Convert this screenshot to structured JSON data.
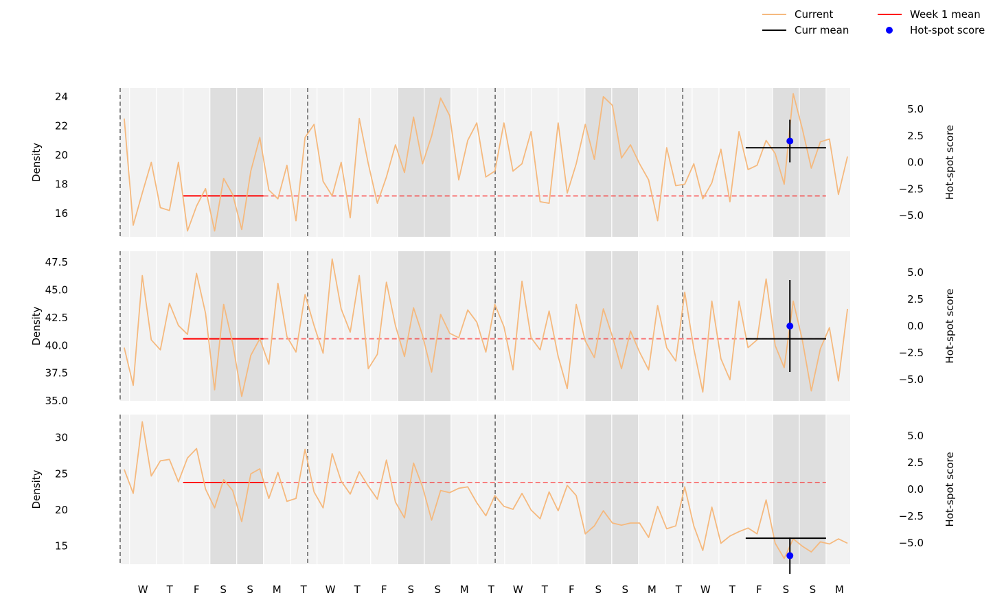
{
  "chart_data": {
    "type": "line",
    "legend": {
      "placement": "top-right",
      "entries": [
        {
          "name": "Current",
          "color": "#f5b97e",
          "marker": "line"
        },
        {
          "name": "Curr mean",
          "color": "#000000",
          "marker": "line"
        },
        {
          "name": "Week 1 mean",
          "color": "#ff0000",
          "marker": "line"
        },
        {
          "name": "Hot-spot score",
          "color": "#0000ff",
          "marker": "dot"
        }
      ]
    },
    "day_labels": [
      "W",
      "T",
      "F",
      "S",
      "S",
      "M",
      "T",
      "W",
      "T",
      "F",
      "S",
      "S",
      "M",
      "T",
      "W",
      "T",
      "F",
      "S",
      "S",
      "M",
      "T",
      "W",
      "T",
      "F",
      "S",
      "S",
      "M"
    ],
    "week_boundaries_day": [
      0,
      7,
      14,
      21
    ],
    "weekend_day_ranges": [
      [
        3,
        5
      ],
      [
        10,
        12
      ],
      [
        17,
        19
      ],
      [
        24,
        26
      ]
    ],
    "x_range_day": [
      -0.35,
      26.9
    ],
    "week1_mean_span_day": [
      2.0,
      5.0
    ],
    "week1_mean_dashed_span_day": [
      5.0,
      26.0
    ],
    "curr_mean_span_day": [
      23.0,
      26.0
    ],
    "hotspot_day": 24.65,
    "panels": [
      {
        "ylabel": "Density",
        "y2label": "Hot-spot score",
        "ylim": [
          14.4,
          24.6
        ],
        "yticks": [
          16,
          18,
          20,
          22,
          24
        ],
        "ytick_labels": [
          "16",
          "18",
          "20",
          "22",
          "24"
        ],
        "y2lim": [
          -7.0,
          7.0
        ],
        "y2ticks": [
          -5.0,
          -2.5,
          0.0,
          2.5,
          5.0
        ],
        "y2tick_labels": [
          "−5.0",
          "−2.5",
          "0.0",
          "2.5",
          "5.0"
        ],
        "week1_mean": 17.2,
        "curr_mean": 20.5,
        "hotspot_score": 2.0,
        "hotspot_error": 2.0,
        "current": [
          22.5,
          15.2,
          17.4,
          19.5,
          16.4,
          16.2,
          19.5,
          14.8,
          16.5,
          17.7,
          14.8,
          18.4,
          17.3,
          14.9,
          18.9,
          21.2,
          17.6,
          17.0,
          19.3,
          15.5,
          21.2,
          22.1,
          18.2,
          17.2,
          19.5,
          15.7,
          22.5,
          19.4,
          16.7,
          18.5,
          20.7,
          18.8,
          22.6,
          19.4,
          21.3,
          23.9,
          22.7,
          18.3,
          21.0,
          22.2,
          18.5,
          18.9,
          22.2,
          18.9,
          19.4,
          21.6,
          16.8,
          16.7,
          22.2,
          17.4,
          19.4,
          22.1,
          19.7,
          24.0,
          23.4,
          19.8,
          20.7,
          19.4,
          18.3,
          15.5,
          20.5,
          17.9,
          18.0,
          19.4,
          17.0,
          18.1,
          20.4,
          16.8,
          21.6,
          19.0,
          19.3,
          21.0,
          20.1,
          18.0,
          24.2,
          21.8,
          19.1,
          20.9,
          21.1,
          17.3,
          19.9
        ]
      },
      {
        "ylabel": "Density",
        "y2label": "Hot-spot score",
        "ylim": [
          35.0,
          48.5
        ],
        "yticks": [
          35.0,
          37.5,
          40.0,
          42.5,
          45.0,
          47.5
        ],
        "ytick_labels": [
          "35.0",
          "37.5",
          "40.0",
          "42.5",
          "45.0",
          "47.5"
        ],
        "y2lim": [
          -7.0,
          7.0
        ],
        "y2ticks": [
          -5.0,
          -2.5,
          0.0,
          2.5,
          5.0
        ],
        "y2tick_labels": [
          "−5.0",
          "−2.5",
          "0.0",
          "2.5",
          "5.0"
        ],
        "week1_mean": 40.6,
        "curr_mean": 40.6,
        "hotspot_score": 0.0,
        "hotspot_error": 4.3,
        "current": [
          39.8,
          36.4,
          46.3,
          40.5,
          39.6,
          43.8,
          41.8,
          41.0,
          46.5,
          42.9,
          36.0,
          43.7,
          40.2,
          35.4,
          39.1,
          40.6,
          38.3,
          45.6,
          40.8,
          39.4,
          44.6,
          41.8,
          39.3,
          47.8,
          43.3,
          41.2,
          46.3,
          37.9,
          39.2,
          45.7,
          41.8,
          39.0,
          43.4,
          40.9,
          37.6,
          42.8,
          41.1,
          40.7,
          43.2,
          42.1,
          39.4,
          43.7,
          41.7,
          37.8,
          45.8,
          40.7,
          39.6,
          43.1,
          39.0,
          36.1,
          43.7,
          40.4,
          38.9,
          43.3,
          40.8,
          37.9,
          41.3,
          39.4,
          37.8,
          43.6,
          39.8,
          38.6,
          44.8,
          39.7,
          35.8,
          44.0,
          38.8,
          36.9,
          44.0,
          39.8,
          40.5,
          46.0,
          40.0,
          38.0,
          44.0,
          40.5,
          35.9,
          39.7,
          41.6,
          36.8,
          43.3
        ]
      },
      {
        "ylabel": "Density",
        "y2label": "Hot-spot score",
        "ylim": [
          12.5,
          33.2
        ],
        "yticks": [
          15,
          20,
          25,
          30
        ],
        "ytick_labels": [
          "15",
          "20",
          "25",
          "30"
        ],
        "y2lim": [
          -7.0,
          7.0
        ],
        "y2ticks": [
          -5.0,
          -2.5,
          0.0,
          2.5,
          5.0
        ],
        "y2tick_labels": [
          "−5.0",
          "−2.5",
          "0.0",
          "2.5",
          "5.0"
        ],
        "week1_mean": 23.8,
        "curr_mean": 16.1,
        "hotspot_score": -6.2,
        "hotspot_error": 1.7,
        "current": [
          25.6,
          22.3,
          32.2,
          24.7,
          26.8,
          27.0,
          23.9,
          27.2,
          28.5,
          22.9,
          20.3,
          24.2,
          22.7,
          18.4,
          25.0,
          25.7,
          21.6,
          25.2,
          21.2,
          21.6,
          28.4,
          22.5,
          20.3,
          27.8,
          24.0,
          22.2,
          25.3,
          23.3,
          21.5,
          26.9,
          21.1,
          18.9,
          26.5,
          23.2,
          18.6,
          22.7,
          22.4,
          23.0,
          23.2,
          21.0,
          19.2,
          22.0,
          20.5,
          20.1,
          22.3,
          20.0,
          18.8,
          22.5,
          19.9,
          23.4,
          22.0,
          16.7,
          17.8,
          19.9,
          18.2,
          17.9,
          18.2,
          18.2,
          16.2,
          20.5,
          17.4,
          17.8,
          23.2,
          17.8,
          14.4,
          20.4,
          15.4,
          16.4,
          17.0,
          17.5,
          16.7,
          21.4,
          15.4,
          13.3,
          16.0,
          15.0,
          14.2,
          15.6,
          15.3,
          16.0,
          15.4
        ]
      }
    ]
  }
}
